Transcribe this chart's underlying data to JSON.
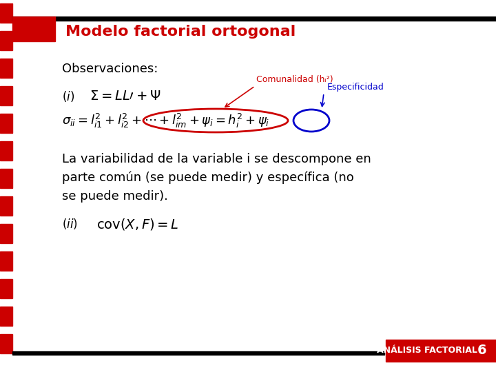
{
  "title": "Modelo factorial ortogonal",
  "title_color": "#CC0000",
  "title_bg": "#CC0000",
  "header_black_bar": "#000000",
  "left_stripe_color": "#CC0000",
  "bg_color": "#FFFFFF",
  "observaciones_text": "Observaciones:",
  "comunalidad_label": "Comunalidad (hᵢ²)",
  "especificidad_label": "Especificidad",
  "body_text": "La variabilidad de la variable i se descompone en\nparte común (se puede medir) y específica (no\nse puede medir).",
  "footer_text": "ANÁLISIS FACTORIAL",
  "page_number": "6",
  "footer_bg": "#CC0000",
  "footer_text_color": "#FFFFFF"
}
